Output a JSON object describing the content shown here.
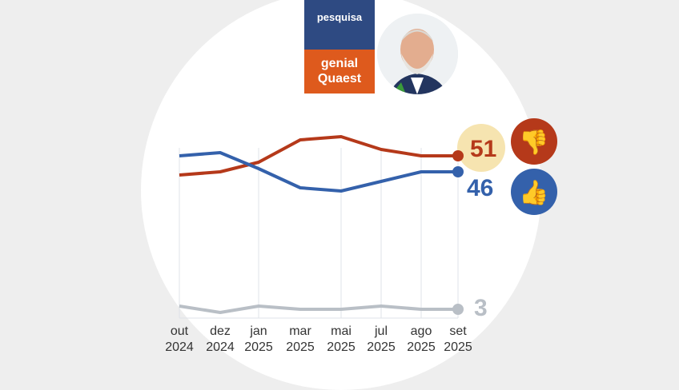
{
  "header": {
    "brand_top": "pesquisa",
    "brand_line1": "genial",
    "brand_line2": "Quaest"
  },
  "chart_data": {
    "type": "line",
    "categories": [
      "out 2024",
      "dez 2024",
      "jan 2025",
      "mar 2025",
      "mai 2025",
      "jul 2025",
      "ago 2025",
      "set 2025"
    ],
    "tick_labels": [
      [
        "out",
        "2024"
      ],
      [
        "dez",
        "2024"
      ],
      [
        "jan",
        "2025"
      ],
      [
        "mar",
        "2025"
      ],
      [
        "mai",
        "2025"
      ],
      [
        "jul",
        "2025"
      ],
      [
        "ago",
        "2025"
      ],
      [
        "set",
        "2025"
      ]
    ],
    "series": [
      {
        "key": "desaprova",
        "icon": "thumbs-down",
        "color": "#b5391a",
        "values": [
          45,
          46,
          49,
          56,
          57,
          53,
          51,
          51
        ],
        "end_label": "51"
      },
      {
        "key": "aprova",
        "icon": "thumbs-up",
        "color": "#3461ab",
        "values": [
          51,
          52,
          47,
          41,
          40,
          43,
          46,
          46
        ],
        "end_label": "46"
      },
      {
        "key": "nao-sabe",
        "color": "#b9bfc6",
        "values": [
          4,
          2,
          4,
          3,
          3,
          4,
          3,
          3
        ],
        "end_label": "3"
      }
    ],
    "highlight_color": "#f6e4b0",
    "grid": true
  }
}
